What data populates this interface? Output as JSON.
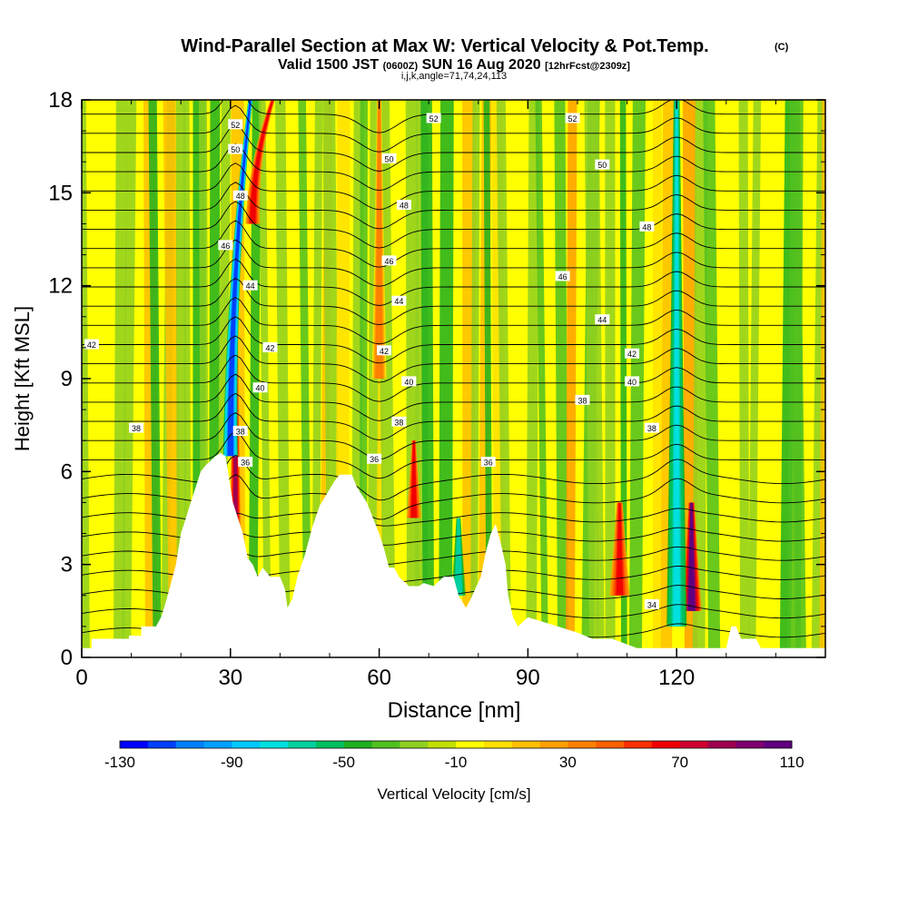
{
  "chart_data": {
    "type": "heatmap",
    "title": "Wind-Parallel Section at Max W: Vertical Velocity & Pot.Temp.",
    "title_tag": "(C)",
    "subtitle_parts": [
      "Valid 1500 JST",
      "(0600Z)",
      "SUN 16 Aug 2020",
      "[12hrFcst@2309z]"
    ],
    "subtitle2": "i,j,k,angle=71,74,24,113",
    "xlabel": "Distance [nm]",
    "ylabel": "Height [Kft MSL]",
    "xlim": [
      0,
      150
    ],
    "ylim": [
      0,
      18
    ],
    "xticks": [
      0,
      30,
      60,
      90,
      120
    ],
    "yticks": [
      0,
      3,
      6,
      9,
      12,
      15,
      18
    ],
    "colorbar": {
      "label": "Vertical Velocity [cm/s]",
      "tick_labels": [
        -130,
        -90,
        -50,
        -10,
        30,
        70,
        110
      ],
      "colors": [
        "#0000ff",
        "#0040ff",
        "#0080ff",
        "#00a0ff",
        "#00c8ff",
        "#00e0e0",
        "#00d0a0",
        "#00c060",
        "#20b020",
        "#50c020",
        "#90d020",
        "#c0e000",
        "#ffff00",
        "#ffe000",
        "#ffc000",
        "#ffa000",
        "#ff8000",
        "#ff6000",
        "#ff3000",
        "#f00000",
        "#d00030",
        "#a00050",
        "#800070",
        "#600080"
      ]
    },
    "terrain": [
      [
        0,
        0.3
      ],
      [
        2,
        0.3
      ],
      [
        2,
        0.6
      ],
      [
        9.5,
        0.6
      ],
      [
        9.5,
        0.7
      ],
      [
        12,
        0.7
      ],
      [
        12,
        1.0
      ],
      [
        15,
        1.0
      ],
      [
        16,
        1.3
      ],
      [
        17,
        1.8
      ],
      [
        19,
        3.0
      ],
      [
        20,
        4.0
      ],
      [
        21,
        4.5
      ],
      [
        22,
        5.0
      ],
      [
        23,
        5.5
      ],
      [
        24,
        6.0
      ],
      [
        25,
        6.2
      ],
      [
        27,
        6.5
      ],
      [
        28,
        6.6
      ],
      [
        29,
        6.5
      ],
      [
        29.5,
        6.0
      ],
      [
        30.5,
        5.0
      ],
      [
        31.5,
        4.5
      ],
      [
        32.5,
        4.0
      ],
      [
        33.5,
        3.2
      ],
      [
        34.5,
        3.0
      ],
      [
        35.5,
        2.6
      ],
      [
        36.5,
        2.9
      ],
      [
        38,
        2.6
      ],
      [
        40,
        2.6
      ],
      [
        41,
        2.2
      ],
      [
        41.5,
        1.6
      ],
      [
        42.5,
        1.9
      ],
      [
        43.5,
        2.6
      ],
      [
        45,
        3.3
      ],
      [
        46.5,
        4.2
      ],
      [
        48,
        4.9
      ],
      [
        49.5,
        5.3
      ],
      [
        51,
        5.7
      ],
      [
        52,
        5.9
      ],
      [
        54.5,
        5.9
      ],
      [
        55.5,
        5.5
      ],
      [
        57.5,
        5.0
      ],
      [
        60,
        4.0
      ],
      [
        61,
        3.5
      ],
      [
        62,
        2.9
      ],
      [
        63,
        2.9
      ],
      [
        64,
        2.6
      ],
      [
        66,
        2.3
      ],
      [
        68,
        2.3
      ],
      [
        69,
        2.4
      ],
      [
        71,
        2.3
      ],
      [
        73,
        2.6
      ],
      [
        75,
        2.6
      ],
      [
        76,
        2.0
      ],
      [
        77.5,
        1.6
      ],
      [
        78.5,
        1.9
      ],
      [
        80.5,
        2.6
      ],
      [
        81.5,
        3.4
      ],
      [
        82.5,
        4.0
      ],
      [
        83.5,
        4.3
      ],
      [
        84.5,
        3.7
      ],
      [
        85.5,
        3.0
      ],
      [
        86,
        2.0
      ],
      [
        87,
        1.3
      ],
      [
        88,
        1.0
      ],
      [
        90,
        1.3
      ],
      [
        96,
        1.0
      ],
      [
        100,
        0.8
      ],
      [
        103,
        0.6
      ],
      [
        107,
        0.6
      ],
      [
        112,
        0.3
      ],
      [
        130,
        0.3
      ],
      [
        131,
        1.0
      ],
      [
        132,
        1.0
      ],
      [
        133,
        0.6
      ],
      [
        136,
        0.6
      ],
      [
        137,
        0.3
      ],
      [
        150,
        0.3
      ]
    ],
    "updraft_cores": [
      {
        "x": 31,
        "z0": 1.0,
        "z1": 11.5,
        "w": 110
      },
      {
        "x": 34.5,
        "z0": 14.0,
        "z1": 18.0,
        "w": 90
      },
      {
        "x": 60,
        "z0": 9.0,
        "z1": 18.0,
        "w": 60
      },
      {
        "x": 67,
        "z0": 4.5,
        "z1": 7.0,
        "w": 90
      },
      {
        "x": 108.5,
        "z0": 2.0,
        "z1": 5.0,
        "w": 90
      },
      {
        "x": 123,
        "z0": 1.5,
        "z1": 5.0,
        "w": 130
      }
    ],
    "downdraft_cores": [
      {
        "x": 30,
        "z0": 6.5,
        "z1": 18.0,
        "w": -110
      },
      {
        "x": 76,
        "z0": 2.0,
        "z1": 4.5,
        "w": -60
      },
      {
        "x": 120,
        "z0": 1.0,
        "z1": 18.0,
        "w": -70
      }
    ],
    "theta_labels": [
      {
        "text": "52",
        "x": 31,
        "z": 17.2
      },
      {
        "text": "50",
        "x": 31,
        "z": 16.4
      },
      {
        "text": "48",
        "x": 32,
        "z": 14.9
      },
      {
        "text": "46",
        "x": 29,
        "z": 13.3
      },
      {
        "text": "44",
        "x": 34,
        "z": 12.0
      },
      {
        "text": "42",
        "x": 38,
        "z": 10.0
      },
      {
        "text": "40",
        "x": 36,
        "z": 8.7
      },
      {
        "text": "38",
        "x": 32,
        "z": 7.3
      },
      {
        "text": "36",
        "x": 33,
        "z": 6.3
      },
      {
        "text": "52",
        "x": 71,
        "z": 17.4
      },
      {
        "text": "50",
        "x": 62,
        "z": 16.1
      },
      {
        "text": "48",
        "x": 65,
        "z": 14.6
      },
      {
        "text": "46",
        "x": 62,
        "z": 12.8
      },
      {
        "text": "44",
        "x": 64,
        "z": 11.5
      },
      {
        "text": "42",
        "x": 61,
        "z": 9.9
      },
      {
        "text": "40",
        "x": 66,
        "z": 8.9
      },
      {
        "text": "38",
        "x": 64,
        "z": 7.6
      },
      {
        "text": "36",
        "x": 59,
        "z": 6.4
      },
      {
        "text": "36",
        "x": 82,
        "z": 6.3
      },
      {
        "text": "52",
        "x": 99,
        "z": 17.4
      },
      {
        "text": "50",
        "x": 105,
        "z": 15.9
      },
      {
        "text": "48",
        "x": 114,
        "z": 13.9
      },
      {
        "text": "46",
        "x": 97,
        "z": 12.3
      },
      {
        "text": "44",
        "x": 105,
        "z": 10.9
      },
      {
        "text": "42",
        "x": 111,
        "z": 9.8
      },
      {
        "text": "40",
        "x": 111,
        "z": 8.9
      },
      {
        "text": "38",
        "x": 101,
        "z": 8.3
      },
      {
        "text": "38",
        "x": 115,
        "z": 7.4
      },
      {
        "text": "34",
        "x": 115,
        "z": 1.7
      },
      {
        "text": "42",
        "x": 2,
        "z": 10.1
      },
      {
        "text": "38",
        "x": 11,
        "z": 7.4
      }
    ]
  }
}
